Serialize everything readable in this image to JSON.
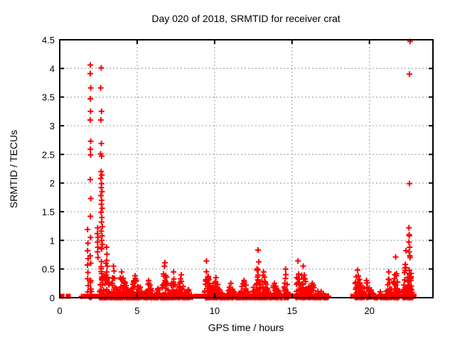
{
  "chart_data": {
    "type": "scatter",
    "title": "Day 020 of 2018, SRMTID for receiver crat",
    "xlabel": "GPS time / hours",
    "ylabel": "SRMTID / TECUs",
    "xlim": [
      0,
      24.1
    ],
    "ylim": [
      0,
      4.5
    ],
    "grid": true,
    "legend_position": "none",
    "marker": "plus",
    "colors": {
      "points": "#ff0000",
      "grid": "#b0b0b0",
      "axis": "#000000",
      "background": "#ffffff"
    },
    "xticks": [
      {
        "v": 0,
        "label": "0"
      },
      {
        "v": 5,
        "label": "5"
      },
      {
        "v": 10,
        "label": "10"
      },
      {
        "v": 15,
        "label": "15"
      },
      {
        "v": 20,
        "label": "20"
      }
    ],
    "yticks": [
      {
        "v": 0,
        "label": "0"
      },
      {
        "v": 0.5,
        "label": "0.5"
      },
      {
        "v": 1,
        "label": "1"
      },
      {
        "v": 1.5,
        "label": "1.5"
      },
      {
        "v": 2,
        "label": "2"
      },
      {
        "v": 2.5,
        "label": "2.5"
      },
      {
        "v": 3,
        "label": "3"
      },
      {
        "v": 3.5,
        "label": "3.5"
      },
      {
        "v": 4,
        "label": "4"
      },
      {
        "v": 4.5,
        "label": "4.5"
      }
    ],
    "series": [
      {
        "name": "srmtid-peak-points",
        "marker": "plus",
        "points": [
          [
            1.8,
            1.19
          ],
          [
            1.82,
            0.95
          ],
          [
            1.8,
            0.82
          ],
          [
            1.83,
            0.68
          ],
          [
            1.79,
            0.57
          ],
          [
            1.82,
            0.44
          ],
          [
            1.8,
            0.33
          ],
          [
            1.84,
            0.21
          ],
          [
            1.81,
            0.1
          ],
          [
            1.4,
            0.02
          ],
          [
            1.98,
            4.06
          ],
          [
            1.97,
            3.91
          ],
          [
            2.0,
            3.66
          ],
          [
            1.98,
            3.47
          ],
          [
            1.99,
            3.25
          ],
          [
            1.97,
            3.1
          ],
          [
            2.0,
            2.73
          ],
          [
            1.98,
            2.59
          ],
          [
            1.99,
            2.49
          ],
          [
            1.97,
            2.06
          ],
          [
            2.0,
            1.73
          ],
          [
            1.98,
            1.42
          ],
          [
            1.99,
            1.05
          ],
          [
            1.97,
            0.73
          ],
          [
            2.0,
            0.6
          ],
          [
            1.98,
            0.27
          ],
          [
            2.01,
            0.15
          ],
          [
            2.45,
            1.22
          ],
          [
            2.43,
            1.12
          ],
          [
            2.47,
            1.05
          ],
          [
            2.44,
            0.97
          ],
          [
            2.46,
            0.88
          ],
          [
            2.44,
            0.8
          ],
          [
            2.47,
            0.7
          ],
          [
            2.68,
            4.01
          ],
          [
            2.65,
            3.66
          ],
          [
            2.7,
            3.25
          ],
          [
            2.66,
            3.1
          ],
          [
            2.69,
            2.69
          ],
          [
            2.64,
            2.51
          ],
          [
            2.71,
            2.47
          ],
          [
            2.67,
            2.2
          ],
          [
            2.72,
            2.14
          ],
          [
            2.65,
            2.08
          ],
          [
            2.7,
            1.99
          ],
          [
            2.68,
            1.92
          ],
          [
            2.73,
            1.85
          ],
          [
            2.66,
            1.78
          ],
          [
            2.71,
            1.7
          ],
          [
            2.69,
            1.63
          ],
          [
            2.74,
            1.56
          ],
          [
            2.67,
            1.49
          ],
          [
            2.72,
            1.4
          ],
          [
            2.7,
            1.32
          ],
          [
            2.75,
            1.24
          ],
          [
            2.68,
            1.16
          ],
          [
            2.73,
            1.08
          ],
          [
            2.71,
            1.0
          ],
          [
            2.76,
            0.93
          ],
          [
            2.69,
            0.86
          ],
          [
            3.02,
            0.88
          ],
          [
            3.05,
            0.76
          ],
          [
            3.03,
            0.65
          ],
          [
            3.07,
            0.55
          ],
          [
            3.04,
            0.45
          ],
          [
            3.08,
            0.35
          ],
          [
            22.62,
            4.47
          ],
          [
            22.58,
            3.9
          ],
          [
            22.58,
            1.99
          ],
          [
            22.55,
            1.22
          ],
          [
            22.56,
            1.1
          ],
          [
            22.57,
            1.08
          ],
          [
            22.55,
            0.97
          ],
          [
            22.6,
            0.88
          ],
          [
            22.56,
            0.8
          ],
          [
            22.61,
            0.73
          ]
        ]
      },
      {
        "name": "srmtid-noise-bands",
        "marker": "plus",
        "seed": 1337,
        "clusters": [
          {
            "x0": 1.92,
            "x1": 2.08,
            "ymax": 0.3,
            "n": 15,
            "peak": 0.5
          },
          {
            "x0": 2.55,
            "x1": 2.88,
            "ymax": 0.85,
            "n": 35,
            "peak": 0.5
          },
          {
            "x0": 2.9,
            "x1": 3.35,
            "ymax": 0.6,
            "n": 50,
            "peak": 0.2
          },
          {
            "x0": 3.35,
            "x1": 3.75,
            "ymax": 0.55,
            "n": 70,
            "peak": 0.3
          },
          {
            "x0": 3.75,
            "x1": 4.6,
            "ymax": 0.45,
            "n": 110,
            "peak": 0.3
          },
          {
            "x0": 4.6,
            "x1": 5.5,
            "ymax": 0.38,
            "n": 90,
            "peak": 0.3
          },
          {
            "x0": 5.5,
            "x1": 6.1,
            "ymax": 0.3,
            "n": 60,
            "peak": 0.4
          },
          {
            "x0": 6.1,
            "x1": 6.6,
            "ymax": 0.16,
            "n": 40,
            "peak": 0.5
          },
          {
            "x0": 6.6,
            "x1": 7.15,
            "ymax": 0.61,
            "n": 80,
            "peak": 0.35
          },
          {
            "x0": 7.15,
            "x1": 7.65,
            "ymax": 0.45,
            "n": 60,
            "peak": 0.4
          },
          {
            "x0": 7.65,
            "x1": 8.15,
            "ymax": 0.4,
            "n": 55,
            "peak": 0.4
          },
          {
            "x0": 8.15,
            "x1": 8.65,
            "ymax": 0.14,
            "n": 25,
            "peak": 0.3
          },
          {
            "x0": 9.35,
            "x1": 9.85,
            "ymax": 0.64,
            "n": 70,
            "peak": 0.25
          },
          {
            "x0": 9.85,
            "x1": 10.65,
            "ymax": 0.35,
            "n": 80,
            "peak": 0.3
          },
          {
            "x0": 10.65,
            "x1": 11.45,
            "ymax": 0.25,
            "n": 70,
            "peak": 0.5
          },
          {
            "x0": 11.45,
            "x1": 12.35,
            "ymax": 0.3,
            "n": 80,
            "peak": 0.5
          },
          {
            "x0": 12.35,
            "x1": 12.68,
            "ymax": 0.18,
            "n": 30,
            "peak": 0.5
          },
          {
            "x0": 12.68,
            "x1": 13.0,
            "ymax": 0.83,
            "n": 55,
            "peak": 0.4
          },
          {
            "x0": 13.0,
            "x1": 13.55,
            "ymax": 0.45,
            "n": 60,
            "peak": 0.3
          },
          {
            "x0": 13.55,
            "x1": 14.35,
            "ymax": 0.25,
            "n": 60,
            "peak": 0.4
          },
          {
            "x0": 14.45,
            "x1": 14.78,
            "ymax": 0.5,
            "n": 35,
            "peak": 0.4
          },
          {
            "x0": 15.25,
            "x1": 15.58,
            "ymax": 0.64,
            "n": 50,
            "peak": 0.4
          },
          {
            "x0": 15.58,
            "x1": 16.05,
            "ymax": 0.55,
            "n": 50,
            "peak": 0.3
          },
          {
            "x0": 16.05,
            "x1": 17.35,
            "ymax": 0.25,
            "n": 100,
            "peak": 0.2
          },
          {
            "x0": 19.05,
            "x1": 19.65,
            "ymax": 0.48,
            "n": 70,
            "peak": 0.3
          },
          {
            "x0": 19.65,
            "x1": 20.45,
            "ymax": 0.3,
            "n": 60,
            "peak": 0.2
          },
          {
            "x0": 20.45,
            "x1": 20.95,
            "ymax": 0.1,
            "n": 25,
            "peak": 0.5
          },
          {
            "x0": 21.0,
            "x1": 21.5,
            "ymax": 0.45,
            "n": 50,
            "peak": 0.5
          },
          {
            "x0": 21.55,
            "x1": 21.9,
            "ymax": 0.71,
            "n": 50,
            "peak": 0.4
          },
          {
            "x0": 22.15,
            "x1": 22.5,
            "ymax": 0.82,
            "n": 55,
            "peak": 0.6
          },
          {
            "x0": 22.5,
            "x1": 22.8,
            "ymax": 0.7,
            "n": 50,
            "peak": 0.4
          }
        ]
      },
      {
        "name": "zero-level-squares",
        "marker": "filled-square",
        "value": 0,
        "hours": [
          0.15,
          0.55,
          1.62,
          1.8,
          2.0,
          2.2,
          2.38,
          3.05,
          4.05,
          6.55,
          8.82,
          9.05,
          9.22,
          10.9,
          13.72,
          14.82,
          14.98,
          15.12,
          17.1,
          18.92,
          19.08,
          20.72,
          20.95,
          21.18,
          21.42,
          21.65,
          21.88,
          22.12,
          22.38,
          22.62,
          22.88
        ]
      }
    ]
  }
}
